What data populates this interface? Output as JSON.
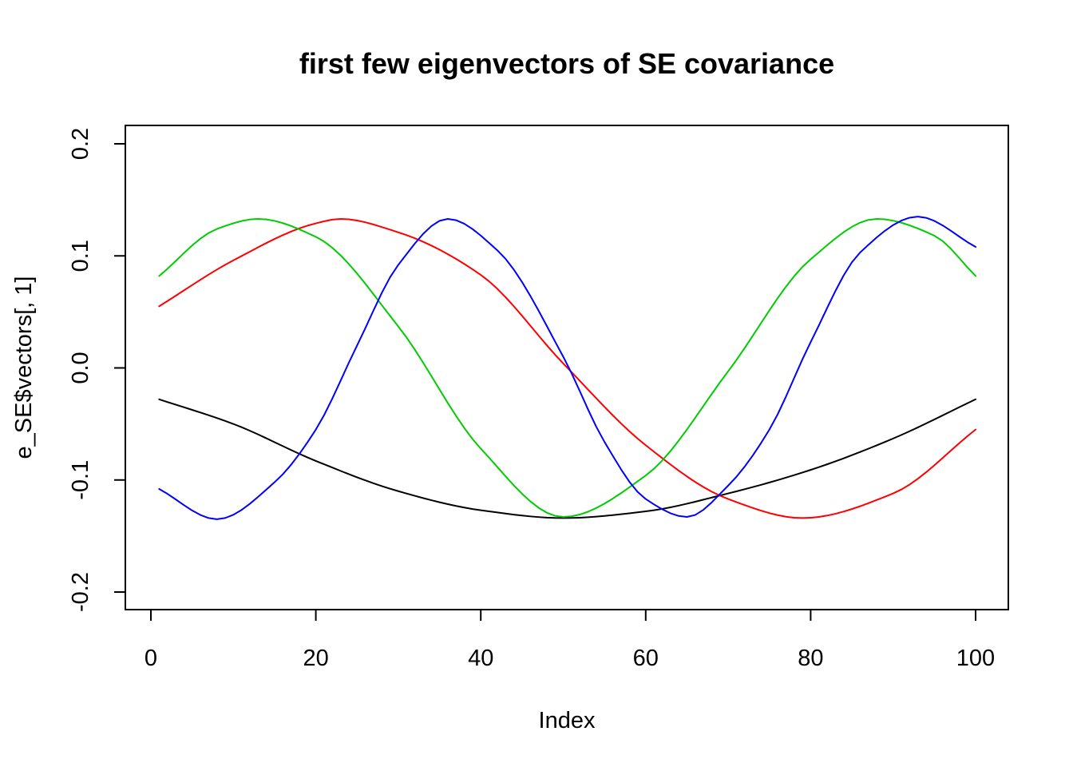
{
  "chart_data": {
    "type": "line",
    "title": "first few eigenvectors of SE covariance",
    "xlabel": "Index",
    "ylabel": "e_SE$vectors[, 1]",
    "xlim": [
      0,
      100
    ],
    "ylim": [
      -0.2,
      0.2
    ],
    "x_ticks": [
      0,
      20,
      40,
      60,
      80,
      100
    ],
    "x_tick_labels": [
      "0",
      "20",
      "40",
      "60",
      "80",
      "100"
    ],
    "y_ticks": [
      -0.2,
      -0.1,
      0.0,
      0.1,
      0.2
    ],
    "y_tick_labels": [
      "-0.2",
      "-0.1",
      "0.0",
      "0.1",
      "0.2"
    ],
    "grid": false,
    "legend": "none",
    "n_points": 100,
    "series": [
      {
        "color": "#000000",
        "x": [
          1,
          10,
          20,
          30,
          40,
          50,
          60,
          70,
          80,
          90,
          100
        ],
        "y": [
          -0.028,
          -0.05,
          -0.083,
          -0.11,
          -0.127,
          -0.134,
          -0.128,
          -0.112,
          -0.091,
          -0.063,
          -0.028
        ]
      },
      {
        "color": "#ff0000",
        "x": [
          1,
          10,
          20,
          23,
          30,
          40,
          50,
          60,
          70,
          79,
          90,
          100
        ],
        "y": [
          0.055,
          0.096,
          0.129,
          0.133,
          0.121,
          0.083,
          0.004,
          -0.069,
          -0.117,
          -0.134,
          -0.112,
          -0.055
        ]
      },
      {
        "color": "#00cc00",
        "x": [
          1,
          8,
          13,
          20,
          30,
          40,
          50,
          60,
          70,
          80,
          88,
          95,
          100
        ],
        "y": [
          0.082,
          0.124,
          0.133,
          0.117,
          0.037,
          -0.072,
          -0.133,
          -0.096,
          -0.003,
          0.097,
          0.133,
          0.118,
          0.082
        ]
      },
      {
        "color": "#0000ff",
        "x": [
          1,
          8,
          15,
          20,
          25,
          30,
          36,
          42,
          50,
          55,
          60,
          65,
          70,
          75,
          80,
          86,
          93,
          100
        ],
        "y": [
          -0.108,
          -0.135,
          -0.102,
          -0.055,
          0.02,
          0.092,
          0.133,
          0.105,
          0.01,
          -0.066,
          -0.117,
          -0.133,
          -0.105,
          -0.055,
          0.023,
          0.103,
          0.135,
          0.108
        ]
      }
    ]
  }
}
